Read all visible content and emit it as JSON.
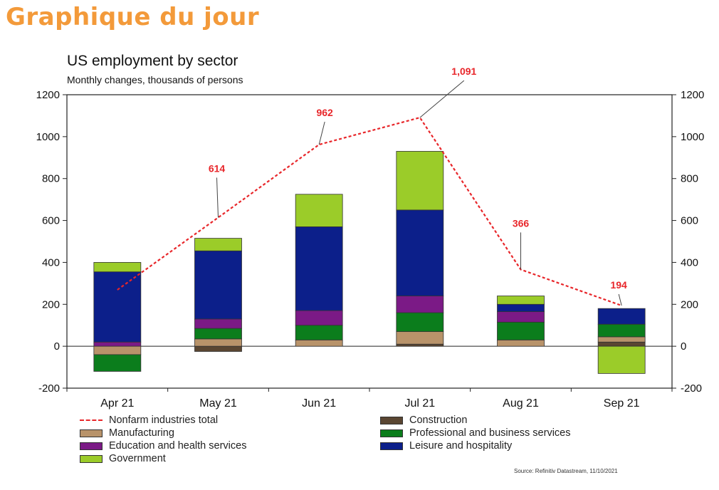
{
  "header": {
    "title": "Graphique du jour"
  },
  "chart_data": {
    "type": "bar",
    "title": "US employment by sector",
    "subtitle": "Monthly changes, thousands of persons",
    "categories": [
      "Apr 21",
      "May 21",
      "Jun 21",
      "Jul 21",
      "Aug 21",
      "Sep 21"
    ],
    "ylim": [
      -200,
      1200
    ],
    "yticks": [
      -200,
      0,
      200,
      400,
      600,
      800,
      1000,
      1200
    ],
    "ytick_labels": [
      "-200",
      "0",
      "200",
      "400",
      "600",
      "800",
      "1000",
      "1200"
    ],
    "grid": false,
    "stacked": true,
    "series": [
      {
        "name": "Construction",
        "color": "#5a4632",
        "values": [
          0,
          -25,
          0,
          10,
          0,
          20
        ]
      },
      {
        "name": "Manufacturing",
        "color": "#b8936a",
        "values": [
          -40,
          35,
          30,
          60,
          30,
          25
        ]
      },
      {
        "name": "Professional and business services",
        "color": "#0b7d1c",
        "values": [
          -80,
          50,
          70,
          90,
          85,
          60
        ]
      },
      {
        "name": "Education and health services",
        "color": "#7b1a86",
        "values": [
          20,
          45,
          70,
          80,
          50,
          0
        ]
      },
      {
        "name": "Leisure and hospitality",
        "color": "#0c1f8a",
        "values": [
          335,
          325,
          400,
          410,
          35,
          75
        ]
      },
      {
        "name": "Government",
        "color": "#9bcc29",
        "values": [
          45,
          60,
          155,
          280,
          40,
          -130
        ]
      }
    ],
    "line_series": {
      "name": "Nonfarm industries total",
      "color": "#e8262a",
      "values": [
        269,
        614,
        962,
        1091,
        366,
        194
      ],
      "labels": [
        "",
        "614",
        "962",
        "1,091",
        "366",
        "194"
      ]
    },
    "legend_position": "bottom"
  },
  "legend": {
    "items": [
      {
        "label": "Nonfarm industries total"
      },
      {
        "label": "Construction"
      },
      {
        "label": "Manufacturing"
      },
      {
        "label": "Professional and business services"
      },
      {
        "label": "Education and health services"
      },
      {
        "label": "Leisure and hospitality"
      },
      {
        "label": "Government"
      }
    ]
  },
  "source": "Source: Refinitiv Datastream, 11/10/2021"
}
